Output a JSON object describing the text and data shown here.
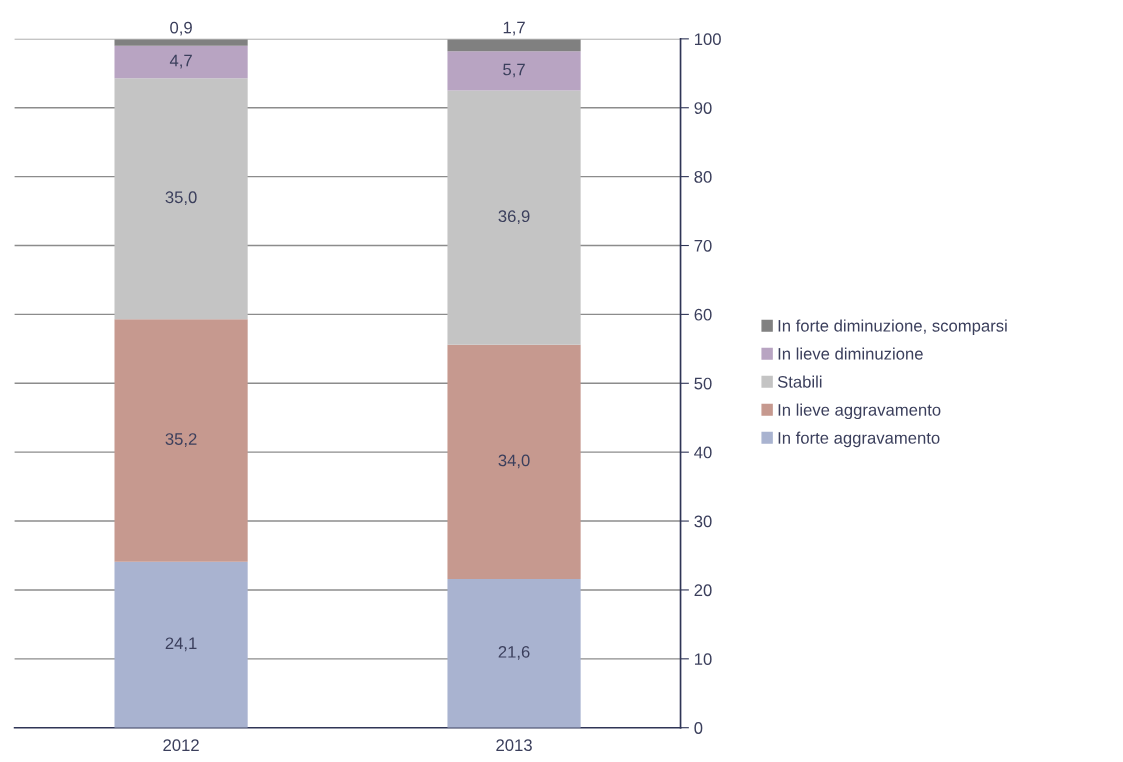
{
  "chart_data": {
    "type": "bar",
    "stacked": true,
    "categories": [
      "2012",
      "2013"
    ],
    "series": [
      {
        "name": "In forte aggravamento",
        "color": "#a9b3d0",
        "values": [
          24.1,
          21.6
        ],
        "value_labels": [
          "24,1",
          "21,6"
        ]
      },
      {
        "name": "In lieve aggravamento",
        "color": "#c6998f",
        "values": [
          35.2,
          34.0
        ],
        "value_labels": [
          "35,2",
          "34,0"
        ]
      },
      {
        "name": "Stabili",
        "color": "#c4c4c4",
        "values": [
          35.0,
          36.9
        ],
        "value_labels": [
          "35,0",
          "36,9"
        ]
      },
      {
        "name": "In lieve diminuzione",
        "color": "#b8a4c2",
        "values": [
          4.7,
          5.7
        ],
        "value_labels": [
          "4,7",
          "5,7"
        ]
      },
      {
        "name": "In forte diminuzione, scomparsi",
        "color": "#808080",
        "values": [
          0.9,
          1.7
        ],
        "value_labels": [
          "0,9",
          "1,7"
        ]
      }
    ],
    "ylim": [
      0,
      100
    ],
    "yticks": [
      0,
      10,
      20,
      30,
      40,
      50,
      60,
      70,
      80,
      90,
      100
    ],
    "grid": "y",
    "legend": "right"
  }
}
